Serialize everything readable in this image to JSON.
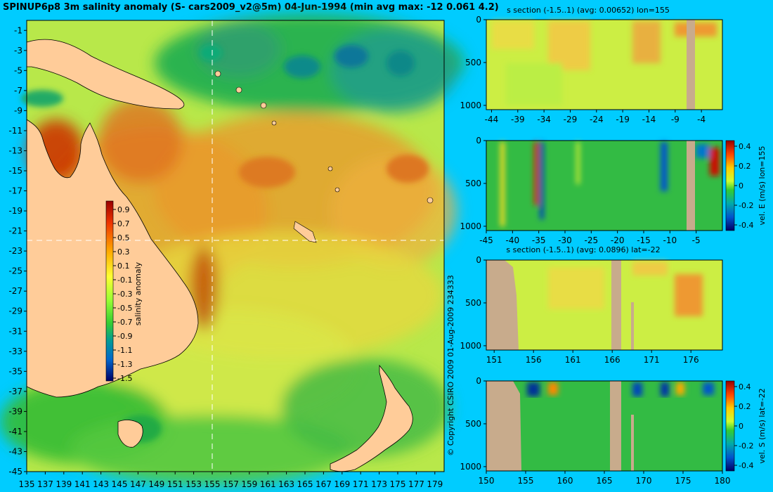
{
  "main_title": "SPINUP6p8 3m salinity anomaly (S- cars2009_v2@5m) 04-Jun-1994 (min avg max: -12 0.061 4.2)",
  "copyright": "© Copyright CSIRO 2009   01-Aug-2009 234333",
  "colors": {
    "background": "#00ccff",
    "land": "#ffcc99",
    "section_land": "#c8ab8c"
  },
  "chart_data": [
    {
      "type": "heatmap",
      "name": "map",
      "xticks": [
        135,
        137,
        139,
        141,
        143,
        145,
        147,
        149,
        151,
        153,
        155,
        157,
        159,
        161,
        163,
        165,
        167,
        169,
        171,
        173,
        175,
        177,
        179
      ],
      "yticks": [
        -1,
        -3,
        -5,
        -7,
        -9,
        -11,
        -13,
        -15,
        -17,
        -19,
        -21,
        -23,
        -25,
        -27,
        -29,
        -31,
        -33,
        -35,
        -37,
        -39,
        -41,
        -43,
        -45
      ],
      "xlim": [
        135,
        180
      ],
      "ylim": [
        -45,
        0
      ],
      "crosshair": {
        "lon": 155,
        "lat": -22
      },
      "colorbar": {
        "label": "salinity anomaly",
        "ticks": [
          "0.9",
          "0.7",
          "0.5",
          "0.3",
          "0.1",
          "-0.1",
          "-0.3",
          "-0.5",
          "-0.7",
          "-0.9",
          "-1.1",
          "-1.3",
          "-1.5"
        ]
      }
    },
    {
      "type": "heatmap",
      "name": "s-section-lon155",
      "title": "s section (-1.5..1) (avg: 0.00652) lon=155",
      "xticks": [
        "-44",
        "-39",
        "-34",
        "-29",
        "-24",
        "-19",
        "-14",
        "-9",
        "-4"
      ],
      "yticks": [
        "0",
        "500",
        "1000"
      ],
      "xlim": [
        -45,
        0
      ],
      "ylim": [
        0,
        1050
      ]
    },
    {
      "type": "heatmap",
      "name": "vel-e-section-lon155",
      "xticks": [
        "-45",
        "-40",
        "-35",
        "-30",
        "-25",
        "-20",
        "-15",
        "-10",
        "-5"
      ],
      "yticks": [
        "0",
        "500",
        "1000"
      ],
      "xlim": [
        -45,
        0
      ],
      "ylim": [
        0,
        1050
      ],
      "colorbar": {
        "label": "vel. E (m/s) lon=155",
        "ticks": [
          "0.4",
          "0.2",
          "0",
          "-0.2",
          "-0.4"
        ]
      }
    },
    {
      "type": "heatmap",
      "name": "s-section-lat-22",
      "title": "s section (-1.5..1) (avg: 0.0896) lat=-22",
      "xticks": [
        "151",
        "156",
        "161",
        "166",
        "171",
        "176"
      ],
      "yticks": [
        "0",
        "500",
        "1000"
      ],
      "xlim": [
        150,
        180
      ],
      "ylim": [
        0,
        1050
      ]
    },
    {
      "type": "heatmap",
      "name": "vel-s-section-lat-22",
      "xticks": [
        "150",
        "155",
        "160",
        "165",
        "170",
        "175",
        "180"
      ],
      "yticks": [
        "0",
        "500",
        "1000"
      ],
      "xlim": [
        150,
        180
      ],
      "ylim": [
        0,
        1050
      ],
      "colorbar": {
        "label": "vel. S (m/s) lat=-22",
        "ticks": [
          "0.4",
          "0.2",
          "0",
          "-0.2",
          "-0.4"
        ]
      }
    }
  ]
}
